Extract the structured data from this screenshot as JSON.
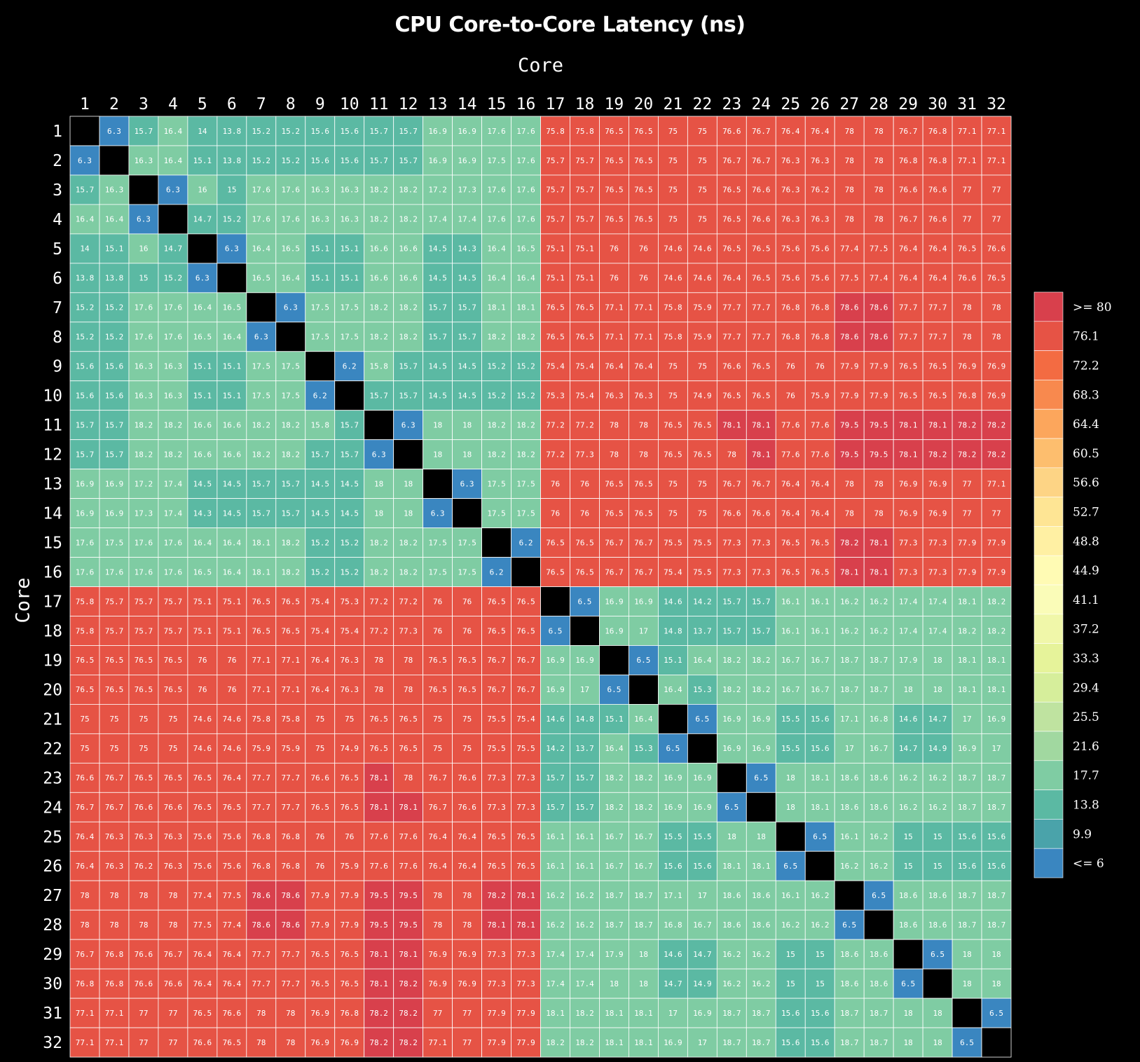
{
  "chart_data": {
    "type": "heatmap",
    "title": "CPU Core-to-Core Latency (ns)",
    "xlabel": "Core",
    "ylabel": "Core",
    "x_categories": [
      "1",
      "2",
      "3",
      "4",
      "5",
      "6",
      "7",
      "8",
      "9",
      "10",
      "11",
      "12",
      "13",
      "14",
      "15",
      "16",
      "17",
      "18",
      "19",
      "20",
      "21",
      "22",
      "23",
      "24",
      "25",
      "26",
      "27",
      "28",
      "29",
      "30",
      "31",
      "32"
    ],
    "y_categories": [
      "1",
      "2",
      "3",
      "4",
      "5",
      "6",
      "7",
      "8",
      "9",
      "10",
      "11",
      "12",
      "13",
      "14",
      "15",
      "16",
      "17",
      "18",
      "19",
      "20",
      "21",
      "22",
      "23",
      "24",
      "25",
      "26",
      "27",
      "28",
      "29",
      "30",
      "31",
      "32"
    ],
    "values": [
      [
        null,
        6.3,
        15.7,
        16.4,
        14,
        13.8,
        15.2,
        15.2,
        15.6,
        15.6,
        15.7,
        15.7,
        16.9,
        16.9,
        17.6,
        17.6,
        75.8,
        75.8,
        76.5,
        76.5,
        75,
        75,
        76.6,
        76.7,
        76.4,
        76.4,
        78,
        78,
        76.7,
        76.8,
        77.1,
        77.1
      ],
      [
        6.3,
        null,
        16.3,
        16.4,
        15.1,
        13.8,
        15.2,
        15.2,
        15.6,
        15.6,
        15.7,
        15.7,
        16.9,
        16.9,
        17.5,
        17.6,
        75.7,
        75.7,
        76.5,
        76.5,
        75,
        75,
        76.7,
        76.7,
        76.3,
        76.3,
        78,
        78,
        76.8,
        76.8,
        77.1,
        77.1
      ],
      [
        15.7,
        16.3,
        null,
        6.3,
        16,
        15,
        17.6,
        17.6,
        16.3,
        16.3,
        18.2,
        18.2,
        17.2,
        17.3,
        17.6,
        17.6,
        75.7,
        75.7,
        76.5,
        76.5,
        75,
        75,
        76.5,
        76.6,
        76.3,
        76.2,
        78,
        78,
        76.6,
        76.6,
        77,
        77
      ],
      [
        16.4,
        16.4,
        6.3,
        null,
        14.7,
        15.2,
        17.6,
        17.6,
        16.3,
        16.3,
        18.2,
        18.2,
        17.4,
        17.4,
        17.6,
        17.6,
        75.7,
        75.7,
        76.5,
        76.5,
        75,
        75,
        76.5,
        76.6,
        76.3,
        76.3,
        78,
        78,
        76.7,
        76.6,
        77,
        77
      ],
      [
        14,
        15.1,
        16,
        14.7,
        null,
        6.3,
        16.4,
        16.5,
        15.1,
        15.1,
        16.6,
        16.6,
        14.5,
        14.3,
        16.4,
        16.5,
        75.1,
        75.1,
        76,
        76,
        74.6,
        74.6,
        76.5,
        76.5,
        75.6,
        75.6,
        77.4,
        77.5,
        76.4,
        76.4,
        76.5,
        76.6
      ],
      [
        13.8,
        13.8,
        15,
        15.2,
        6.3,
        null,
        16.5,
        16.4,
        15.1,
        15.1,
        16.6,
        16.6,
        14.5,
        14.5,
        16.4,
        16.4,
        75.1,
        75.1,
        76,
        76,
        74.6,
        74.6,
        76.4,
        76.5,
        75.6,
        75.6,
        77.5,
        77.4,
        76.4,
        76.4,
        76.6,
        76.5
      ],
      [
        15.2,
        15.2,
        17.6,
        17.6,
        16.4,
        16.5,
        null,
        6.3,
        17.5,
        17.5,
        18.2,
        18.2,
        15.7,
        15.7,
        18.1,
        18.1,
        76.5,
        76.5,
        77.1,
        77.1,
        75.8,
        75.9,
        77.7,
        77.7,
        76.8,
        76.8,
        78.6,
        78.6,
        77.7,
        77.7,
        78,
        78
      ],
      [
        15.2,
        15.2,
        17.6,
        17.6,
        16.5,
        16.4,
        6.3,
        null,
        17.5,
        17.5,
        18.2,
        18.2,
        15.7,
        15.7,
        18.2,
        18.2,
        76.5,
        76.5,
        77.1,
        77.1,
        75.8,
        75.9,
        77.7,
        77.7,
        76.8,
        76.8,
        78.6,
        78.6,
        77.7,
        77.7,
        78,
        78
      ],
      [
        15.6,
        15.6,
        16.3,
        16.3,
        15.1,
        15.1,
        17.5,
        17.5,
        null,
        6.2,
        15.8,
        15.7,
        14.5,
        14.5,
        15.2,
        15.2,
        75.4,
        75.4,
        76.4,
        76.4,
        75,
        75,
        76.6,
        76.5,
        76,
        76,
        77.9,
        77.9,
        76.5,
        76.5,
        76.9,
        76.9
      ],
      [
        15.6,
        15.6,
        16.3,
        16.3,
        15.1,
        15.1,
        17.5,
        17.5,
        6.2,
        null,
        15.7,
        15.7,
        14.5,
        14.5,
        15.2,
        15.2,
        75.3,
        75.4,
        76.3,
        76.3,
        75,
        74.9,
        76.5,
        76.5,
        76,
        75.9,
        77.9,
        77.9,
        76.5,
        76.5,
        76.8,
        76.9
      ],
      [
        15.7,
        15.7,
        18.2,
        18.2,
        16.6,
        16.6,
        18.2,
        18.2,
        15.8,
        15.7,
        null,
        6.3,
        18,
        18,
        18.2,
        18.2,
        77.2,
        77.2,
        78,
        78,
        76.5,
        76.5,
        78.1,
        78.1,
        77.6,
        77.6,
        79.5,
        79.5,
        78.1,
        78.1,
        78.2,
        78.2
      ],
      [
        15.7,
        15.7,
        18.2,
        18.2,
        16.6,
        16.6,
        18.2,
        18.2,
        15.7,
        15.7,
        6.3,
        null,
        18,
        18,
        18.2,
        18.2,
        77.2,
        77.3,
        78,
        78,
        76.5,
        76.5,
        78,
        78.1,
        77.6,
        77.6,
        79.5,
        79.5,
        78.1,
        78.2,
        78.2,
        78.2
      ],
      [
        16.9,
        16.9,
        17.2,
        17.4,
        14.5,
        14.5,
        15.7,
        15.7,
        14.5,
        14.5,
        18,
        18,
        null,
        6.3,
        17.5,
        17.5,
        76,
        76,
        76.5,
        76.5,
        75,
        75,
        76.7,
        76.7,
        76.4,
        76.4,
        78,
        78,
        76.9,
        76.9,
        77,
        77.1
      ],
      [
        16.9,
        16.9,
        17.3,
        17.4,
        14.3,
        14.5,
        15.7,
        15.7,
        14.5,
        14.5,
        18,
        18,
        6.3,
        null,
        17.5,
        17.5,
        76,
        76,
        76.5,
        76.5,
        75,
        75,
        76.6,
        76.6,
        76.4,
        76.4,
        78,
        78,
        76.9,
        76.9,
        77,
        77
      ],
      [
        17.6,
        17.5,
        17.6,
        17.6,
        16.4,
        16.4,
        18.1,
        18.2,
        15.2,
        15.2,
        18.2,
        18.2,
        17.5,
        17.5,
        null,
        6.2,
        76.5,
        76.5,
        76.7,
        76.7,
        75.5,
        75.5,
        77.3,
        77.3,
        76.5,
        76.5,
        78.2,
        78.1,
        77.3,
        77.3,
        77.9,
        77.9
      ],
      [
        17.6,
        17.6,
        17.6,
        17.6,
        16.5,
        16.4,
        18.1,
        18.2,
        15.2,
        15.2,
        18.2,
        18.2,
        17.5,
        17.5,
        6.2,
        null,
        76.5,
        76.5,
        76.7,
        76.7,
        75.4,
        75.5,
        77.3,
        77.3,
        76.5,
        76.5,
        78.1,
        78.1,
        77.3,
        77.3,
        77.9,
        77.9
      ],
      [
        75.8,
        75.7,
        75.7,
        75.7,
        75.1,
        75.1,
        76.5,
        76.5,
        75.4,
        75.3,
        77.2,
        77.2,
        76,
        76,
        76.5,
        76.5,
        null,
        6.5,
        16.9,
        16.9,
        14.6,
        14.2,
        15.7,
        15.7,
        16.1,
        16.1,
        16.2,
        16.2,
        17.4,
        17.4,
        18.1,
        18.2
      ],
      [
        75.8,
        75.7,
        75.7,
        75.7,
        75.1,
        75.1,
        76.5,
        76.5,
        75.4,
        75.4,
        77.2,
        77.3,
        76,
        76,
        76.5,
        76.5,
        6.5,
        null,
        16.9,
        17,
        14.8,
        13.7,
        15.7,
        15.7,
        16.1,
        16.1,
        16.2,
        16.2,
        17.4,
        17.4,
        18.2,
        18.2
      ],
      [
        76.5,
        76.5,
        76.5,
        76.5,
        76,
        76,
        77.1,
        77.1,
        76.4,
        76.3,
        78,
        78,
        76.5,
        76.5,
        76.7,
        76.7,
        16.9,
        16.9,
        null,
        6.5,
        15.1,
        16.4,
        18.2,
        18.2,
        16.7,
        16.7,
        18.7,
        18.7,
        17.9,
        18,
        18.1,
        18.1
      ],
      [
        76.5,
        76.5,
        76.5,
        76.5,
        76,
        76,
        77.1,
        77.1,
        76.4,
        76.3,
        78,
        78,
        76.5,
        76.5,
        76.7,
        76.7,
        16.9,
        17,
        6.5,
        null,
        16.4,
        15.3,
        18.2,
        18.2,
        16.7,
        16.7,
        18.7,
        18.7,
        18,
        18,
        18.1,
        18.1
      ],
      [
        75,
        75,
        75,
        75,
        74.6,
        74.6,
        75.8,
        75.8,
        75,
        75,
        76.5,
        76.5,
        75,
        75,
        75.5,
        75.4,
        14.6,
        14.8,
        15.1,
        16.4,
        null,
        6.5,
        16.9,
        16.9,
        15.5,
        15.6,
        17.1,
        16.8,
        14.6,
        14.7,
        17,
        16.9
      ],
      [
        75,
        75,
        75,
        75,
        74.6,
        74.6,
        75.9,
        75.9,
        75,
        74.9,
        76.5,
        76.5,
        75,
        75,
        75.5,
        75.5,
        14.2,
        13.7,
        16.4,
        15.3,
        6.5,
        null,
        16.9,
        16.9,
        15.5,
        15.6,
        17,
        16.7,
        14.7,
        14.9,
        16.9,
        17
      ],
      [
        76.6,
        76.7,
        76.5,
        76.5,
        76.5,
        76.4,
        77.7,
        77.7,
        76.6,
        76.5,
        78.1,
        78,
        76.7,
        76.6,
        77.3,
        77.3,
        15.7,
        15.7,
        18.2,
        18.2,
        16.9,
        16.9,
        null,
        6.5,
        18,
        18.1,
        18.6,
        18.6,
        16.2,
        16.2,
        18.7,
        18.7
      ],
      [
        76.7,
        76.7,
        76.6,
        76.6,
        76.5,
        76.5,
        77.7,
        77.7,
        76.5,
        76.5,
        78.1,
        78.1,
        76.7,
        76.6,
        77.3,
        77.3,
        15.7,
        15.7,
        18.2,
        18.2,
        16.9,
        16.9,
        6.5,
        null,
        18,
        18.1,
        18.6,
        18.6,
        16.2,
        16.2,
        18.7,
        18.7
      ],
      [
        76.4,
        76.3,
        76.3,
        76.3,
        75.6,
        75.6,
        76.8,
        76.8,
        76,
        76,
        77.6,
        77.6,
        76.4,
        76.4,
        76.5,
        76.5,
        16.1,
        16.1,
        16.7,
        16.7,
        15.5,
        15.5,
        18,
        18,
        null,
        6.5,
        16.1,
        16.2,
        15,
        15,
        15.6,
        15.6
      ],
      [
        76.4,
        76.3,
        76.2,
        76.3,
        75.6,
        75.6,
        76.8,
        76.8,
        76,
        75.9,
        77.6,
        77.6,
        76.4,
        76.4,
        76.5,
        76.5,
        16.1,
        16.1,
        16.7,
        16.7,
        15.6,
        15.6,
        18.1,
        18.1,
        6.5,
        null,
        16.2,
        16.2,
        15,
        15,
        15.6,
        15.6
      ],
      [
        78,
        78,
        78,
        78,
        77.4,
        77.5,
        78.6,
        78.6,
        77.9,
        77.9,
        79.5,
        79.5,
        78,
        78,
        78.2,
        78.1,
        16.2,
        16.2,
        18.7,
        18.7,
        17.1,
        17,
        18.6,
        18.6,
        16.1,
        16.2,
        null,
        6.5,
        18.6,
        18.6,
        18.7,
        18.7
      ],
      [
        78,
        78,
        78,
        78,
        77.5,
        77.4,
        78.6,
        78.6,
        77.9,
        77.9,
        79.5,
        79.5,
        78,
        78,
        78.1,
        78.1,
        16.2,
        16.2,
        18.7,
        18.7,
        16.8,
        16.7,
        18.6,
        18.6,
        16.2,
        16.2,
        6.5,
        null,
        18.6,
        18.6,
        18.7,
        18.7
      ],
      [
        76.7,
        76.8,
        76.6,
        76.7,
        76.4,
        76.4,
        77.7,
        77.7,
        76.5,
        76.5,
        78.1,
        78.1,
        76.9,
        76.9,
        77.3,
        77.3,
        17.4,
        17.4,
        17.9,
        18,
        14.6,
        14.7,
        16.2,
        16.2,
        15,
        15,
        18.6,
        18.6,
        null,
        6.5,
        18,
        18
      ],
      [
        76.8,
        76.8,
        76.6,
        76.6,
        76.4,
        76.4,
        77.7,
        77.7,
        76.5,
        76.5,
        78.1,
        78.2,
        76.9,
        76.9,
        77.3,
        77.3,
        17.4,
        17.4,
        18,
        18,
        14.7,
        14.9,
        16.2,
        16.2,
        15,
        15,
        18.6,
        18.6,
        6.5,
        null,
        18,
        18
      ],
      [
        77.1,
        77.1,
        77,
        77,
        76.5,
        76.6,
        78,
        78,
        76.9,
        76.8,
        78.2,
        78.2,
        77,
        77,
        77.9,
        77.9,
        18.1,
        18.2,
        18.1,
        18.1,
        17,
        16.9,
        18.7,
        18.7,
        15.6,
        15.6,
        18.7,
        18.7,
        18,
        18,
        null,
        6.5
      ],
      [
        77.1,
        77.1,
        77,
        77,
        76.6,
        76.5,
        78,
        78,
        76.9,
        76.9,
        78.2,
        78.2,
        77.1,
        77,
        77.9,
        77.9,
        18.2,
        18.2,
        18.1,
        18.1,
        16.9,
        17,
        18.7,
        18.7,
        15.6,
        15.6,
        18.7,
        18.7,
        18,
        18,
        6.5,
        null
      ]
    ],
    "color_scale": {
      "min": 6,
      "max": 80,
      "ticks": [
        "<= 6",
        "9.9",
        "13.8",
        "17.7",
        "21.6",
        "25.5",
        "29.4",
        "33.3",
        "37.2",
        "41.1",
        "44.9",
        "48.8",
        "52.7",
        "56.6",
        "60.5",
        "64.4",
        "68.3",
        "72.2",
        "76.1",
        ">= 80"
      ],
      "colors": [
        "#3a86c0",
        "#4aa3aa",
        "#5bb9a3",
        "#7fcca3",
        "#a1d8a0",
        "#bfe3a0",
        "#d6ee9b",
        "#e6f39a",
        "#f0f7a9",
        "#fafcb8",
        "#fffbb4",
        "#fff0a3",
        "#fee594",
        "#fdd485",
        "#fdbe6e",
        "#fca65c",
        "#f8894e",
        "#f36b42",
        "#e65345",
        "#d8404c"
      ],
      "legend_position": "right"
    },
    "diagonal_color": "#000000"
  }
}
